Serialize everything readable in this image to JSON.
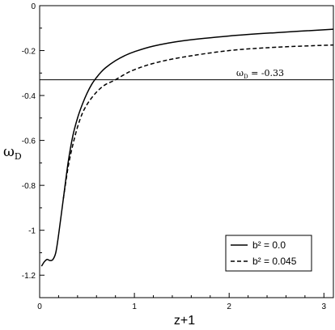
{
  "chart_data": {
    "type": "line",
    "xlabel": "z+1",
    "ylabel": "ω",
    "ylabel_sub": "D",
    "xlim": [
      0,
      3.1
    ],
    "ylim": [
      -1.3,
      0
    ],
    "xticks": [
      0,
      1,
      2,
      3
    ],
    "yticks": [
      0,
      -0.2,
      -0.4,
      -0.6,
      -0.8,
      -1,
      -1.2
    ],
    "xtick_labels": [
      "0",
      "1",
      "2",
      "3"
    ],
    "ytick_labels": [
      "0",
      "-0.2",
      "-0.4",
      "-0.6",
      "-0.8",
      "-1",
      "-1.2"
    ],
    "grid": false,
    "legend_position": "bottom-right",
    "hline": {
      "y": -0.33,
      "label_main": "ω",
      "label_sub": "D",
      "label_rest": " = -0.33"
    },
    "series": [
      {
        "name": "b² = 0.0",
        "style": "solid",
        "x": [
          0.02,
          0.05,
          0.08,
          0.11,
          0.14,
          0.17,
          0.2,
          0.25,
          0.3,
          0.35,
          0.4,
          0.45,
          0.5,
          0.55,
          0.6,
          0.65,
          0.7,
          0.8,
          0.9,
          1.0,
          1.2,
          1.5,
          2.0,
          2.5,
          3.1
        ],
        "y": [
          -1.16,
          -1.14,
          -1.13,
          -1.135,
          -1.13,
          -1.1,
          -1.02,
          -0.86,
          -0.7,
          -0.58,
          -0.5,
          -0.44,
          -0.39,
          -0.35,
          -0.32,
          -0.295,
          -0.275,
          -0.245,
          -0.222,
          -0.205,
          -0.18,
          -0.157,
          -0.135,
          -0.12,
          -0.105
        ]
      },
      {
        "name": "b² = 0.045",
        "style": "dashed",
        "x": [
          0.25,
          0.3,
          0.35,
          0.4,
          0.45,
          0.5,
          0.55,
          0.6,
          0.65,
          0.7,
          0.75,
          0.8,
          0.9,
          1.0,
          1.2,
          1.5,
          2.0,
          2.5,
          3.1
        ],
        "y": [
          -0.86,
          -0.72,
          -0.62,
          -0.54,
          -0.48,
          -0.44,
          -0.41,
          -0.385,
          -0.365,
          -0.35,
          -0.34,
          -0.33,
          -0.305,
          -0.285,
          -0.257,
          -0.23,
          -0.2,
          -0.185,
          -0.175
        ]
      }
    ]
  }
}
